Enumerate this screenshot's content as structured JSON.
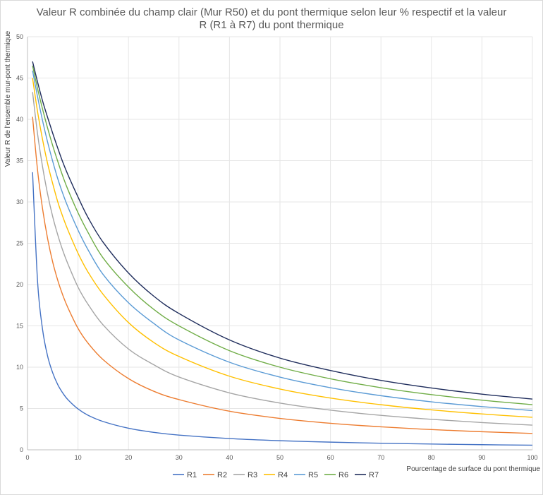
{
  "chart_data": {
    "type": "line",
    "title_lines": [
      "Valeur R combinée du champ clair (Mur R50) et du pont thermique selon leur % respectif et la valeur",
      "R (R1 à R7) du pont thermique"
    ],
    "xlabel": "Pourcentage de surface du pont thermique",
    "ylabel": "Valeur R de l'ensemble mur-pont thermique",
    "xlim": [
      0,
      100
    ],
    "ylim": [
      0,
      50
    ],
    "xticks": [
      0,
      10,
      20,
      30,
      40,
      50,
      60,
      70,
      80,
      90,
      100
    ],
    "yticks": [
      0,
      5,
      10,
      15,
      20,
      25,
      30,
      35,
      40,
      45,
      50
    ],
    "grid": true,
    "legend_position": "bottom",
    "x": [
      1,
      2,
      3,
      4,
      5,
      6,
      7,
      8,
      10,
      12,
      15,
      20,
      25,
      30,
      40,
      50,
      60,
      70,
      80,
      90,
      100
    ],
    "series": [
      {
        "name": "R1",
        "color": "#4472c4",
        "values": [
          33.6,
          20.3,
          14.5,
          11.3,
          9.3,
          7.88,
          6.86,
          6.07,
          4.95,
          4.18,
          3.42,
          2.61,
          2.11,
          1.78,
          1.36,
          1.1,
          0.93,
          0.8,
          0.7,
          0.62,
          0.56
        ]
      },
      {
        "name": "R2",
        "color": "#ed7d31",
        "values": [
          40.3,
          33.8,
          29.1,
          25.5,
          22.7,
          20.5,
          18.7,
          17.2,
          14.7,
          12.9,
          10.9,
          8.62,
          7.09,
          6.08,
          4.67,
          3.8,
          3.21,
          2.78,
          2.45,
          2.19,
          1.98
        ]
      },
      {
        "name": "R3",
        "color": "#a5a5a5",
        "values": [
          43.3,
          38.2,
          34.2,
          30.9,
          28.2,
          26.0,
          24.1,
          22.5,
          19.7,
          17.6,
          15.1,
          12.2,
          10.3,
          8.81,
          6.89,
          5.66,
          4.8,
          4.17,
          3.69,
          3.3,
          2.99
        ]
      },
      {
        "name": "R4",
        "color": "#ffc000",
        "values": [
          45.0,
          40.9,
          37.5,
          34.6,
          32.2,
          30.0,
          28.2,
          26.6,
          23.8,
          21.5,
          18.8,
          15.4,
          13.0,
          11.3,
          8.91,
          7.36,
          6.27,
          5.46,
          4.83,
          4.34,
          3.94
        ]
      },
      {
        "name": "R5",
        "color": "#5b9bd5",
        "values": [
          45.9,
          42.7,
          39.8,
          37.2,
          34.9,
          32.8,
          31.0,
          29.4,
          26.6,
          24.2,
          21.2,
          17.8,
          15.3,
          13.3,
          10.6,
          8.8,
          7.52,
          6.55,
          5.81,
          5.23,
          4.75
        ]
      },
      {
        "name": "R6",
        "color": "#70ad47",
        "values": [
          46.5,
          43.7,
          41.2,
          38.9,
          36.8,
          34.9,
          33.1,
          31.5,
          28.7,
          26.3,
          23.2,
          19.7,
          17.0,
          15.0,
          12.0,
          10.0,
          8.6,
          7.52,
          6.68,
          6.01,
          5.46
        ]
      },
      {
        "name": "R7",
        "color": "#1f2d5c",
        "values": [
          47.0,
          44.5,
          42.2,
          40.2,
          38.3,
          36.5,
          34.8,
          33.3,
          30.6,
          28.1,
          25.1,
          21.4,
          18.6,
          16.5,
          13.3,
          11.1,
          9.6,
          8.4,
          7.48,
          6.74,
          6.14
        ]
      }
    ]
  }
}
